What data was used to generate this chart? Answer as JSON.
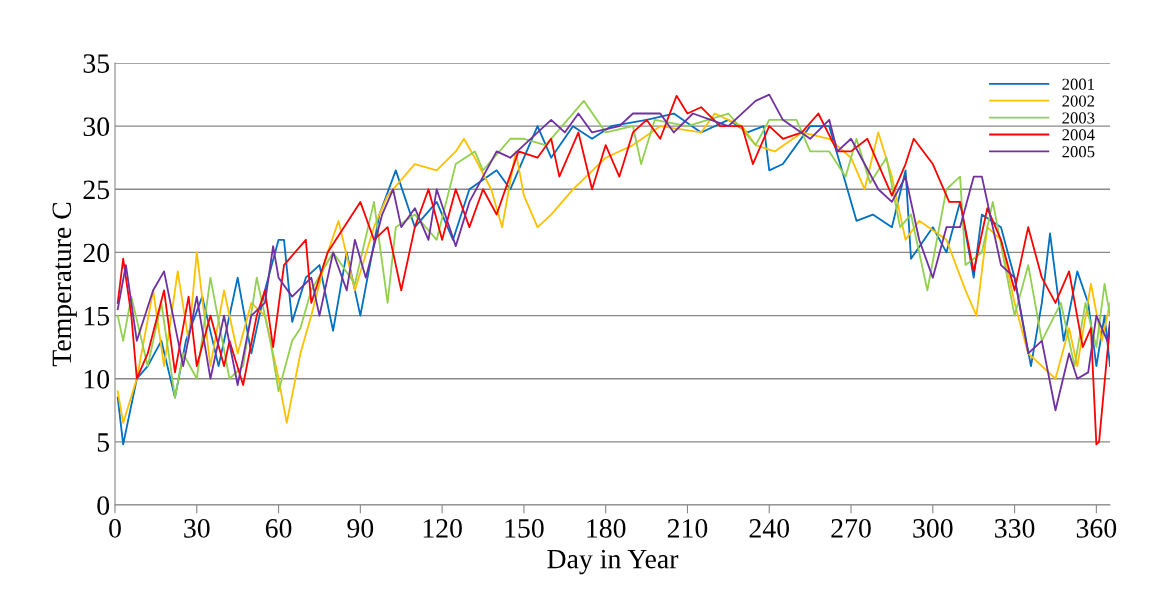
{
  "chart_data": {
    "type": "line",
    "xlabel": "Day in Year",
    "ylabel": "Temperature C",
    "xlim": [
      0,
      365
    ],
    "xticks": [
      0,
      30,
      60,
      90,
      120,
      150,
      180,
      210,
      240,
      270,
      300,
      330,
      360
    ],
    "ylim": [
      0,
      35
    ],
    "yticks": [
      0,
      5,
      10,
      15,
      20,
      25,
      30,
      35
    ],
    "grid": "y",
    "legend": "top right",
    "marker": "none",
    "line_style": "solid",
    "series": [
      {
        "name": "2001",
        "color": "#0070c0",
        "x": [
          1,
          3,
          8,
          12,
          17,
          22,
          26,
          32,
          38,
          45,
          50,
          55,
          60,
          62,
          65,
          70,
          75,
          80,
          85,
          90,
          97,
          103,
          110,
          118,
          124,
          130,
          140,
          145,
          155,
          160,
          168,
          175,
          182,
          195,
          205,
          215,
          225,
          232,
          238,
          240,
          245,
          255,
          262,
          272,
          278,
          285,
          290,
          292,
          300,
          305,
          310,
          315,
          318,
          325,
          330,
          336,
          340,
          343,
          348,
          353,
          357,
          360,
          363,
          365
        ],
        "values": [
          8.5,
          4.8,
          10,
          11,
          13,
          8.5,
          13,
          16.5,
          11,
          18,
          12,
          17,
          21,
          21,
          14.5,
          18,
          19,
          13.8,
          20,
          15,
          23,
          26.5,
          22,
          24,
          21,
          25,
          26.5,
          25,
          30,
          27.5,
          30,
          29,
          30,
          30.5,
          31,
          29.5,
          30.5,
          29.5,
          30,
          26.5,
          27,
          30,
          30,
          22.5,
          23,
          22,
          26.5,
          19.5,
          22,
          20,
          24,
          18,
          23,
          22,
          18,
          11,
          16,
          21.5,
          13,
          18.5,
          16,
          11,
          15,
          11
        ]
      },
      {
        "name": "2002",
        "color": "#ffc000",
        "x": [
          1,
          3,
          8,
          14,
          18,
          23,
          27,
          30,
          35,
          40,
          45,
          50,
          55,
          60,
          63,
          68,
          72,
          78,
          82,
          88,
          95,
          100,
          110,
          118,
          125,
          128,
          132,
          138,
          142,
          147,
          150,
          155,
          160,
          168,
          180,
          190,
          200,
          215,
          220,
          230,
          235,
          242,
          252,
          262,
          270,
          275,
          280,
          285,
          290,
          295,
          305,
          312,
          316,
          320,
          325,
          330,
          335,
          345,
          350,
          353,
          358,
          362,
          365
        ],
        "values": [
          9,
          6.5,
          10,
          17,
          11,
          18.5,
          13,
          20,
          11,
          17,
          12,
          16,
          15,
          10,
          6.5,
          12,
          15,
          20,
          22.5,
          17,
          22,
          24.5,
          27,
          26.5,
          28,
          29,
          27.5,
          25,
          22,
          28,
          24.5,
          22,
          23,
          25,
          27.5,
          28.5,
          30,
          29.5,
          31,
          30,
          28.5,
          28,
          29.5,
          29,
          27.5,
          25,
          29.5,
          26,
          21,
          22.5,
          21,
          17,
          15,
          22,
          21,
          16,
          12,
          10,
          14,
          11,
          17.5,
          13,
          16
        ]
      },
      {
        "name": "2003",
        "color": "#92d050",
        "x": [
          1,
          3,
          6,
          12,
          17,
          22,
          25,
          30,
          35,
          42,
          47,
          52,
          57,
          60,
          65,
          68,
          72,
          80,
          88,
          95,
          100,
          103,
          110,
          118,
          125,
          132,
          135,
          145,
          150,
          158,
          170,
          172,
          180,
          190,
          193,
          198,
          210,
          225,
          235,
          240,
          250,
          255,
          262,
          268,
          272,
          277,
          283,
          288,
          292,
          298,
          305,
          310,
          312,
          318,
          322,
          330,
          335,
          340,
          347,
          352,
          356,
          360,
          363,
          365
        ],
        "values": [
          15,
          13,
          16.5,
          11,
          16,
          8.5,
          12,
          10,
          18,
          10,
          11,
          18,
          13,
          9,
          13,
          14,
          17,
          20,
          17.5,
          24,
          16,
          22,
          23,
          21,
          27,
          28,
          26.5,
          29,
          29,
          28.5,
          31.5,
          32,
          29.5,
          30,
          27,
          30.5,
          30,
          31,
          28.5,
          30.5,
          30.5,
          28,
          28,
          26,
          29,
          25.5,
          27.5,
          22,
          23,
          17,
          25,
          26,
          19,
          20,
          24,
          15,
          19,
          13,
          16,
          11,
          16,
          12.5,
          17.5,
          15
        ]
      },
      {
        "name": "2004",
        "color": "#ff0000",
        "x": [
          1,
          3,
          6,
          8,
          12,
          18,
          22,
          27,
          30,
          35,
          40,
          42,
          47,
          52,
          55,
          58,
          62,
          70,
          72,
          78,
          90,
          95,
          100,
          105,
          110,
          115,
          120,
          125,
          130,
          135,
          140,
          148,
          155,
          160,
          163,
          170,
          175,
          180,
          185,
          190,
          195,
          200,
          206,
          210,
          215,
          222,
          230,
          234,
          240,
          245,
          252,
          258,
          265,
          270,
          276,
          285,
          290,
          293,
          300,
          306,
          310,
          315,
          320,
          325,
          330,
          335,
          340,
          345,
          350,
          355,
          358,
          360,
          361,
          364,
          365
        ],
        "values": [
          16,
          19.5,
          15,
          10,
          12,
          17,
          10.5,
          16.5,
          11,
          15,
          11,
          13,
          9.5,
          15,
          17,
          12.5,
          19,
          21,
          16,
          20,
          24,
          21,
          22,
          17,
          22,
          25,
          21,
          25,
          22,
          25,
          23,
          28,
          27.5,
          29,
          26,
          29.5,
          25,
          28.5,
          26,
          29.5,
          30.5,
          29,
          32.4,
          31,
          31.5,
          30,
          30,
          27,
          30,
          29,
          29.5,
          31,
          28,
          28,
          29,
          24.5,
          27,
          29,
          27,
          24,
          24,
          18.5,
          23.5,
          21,
          17,
          22,
          18,
          16,
          18.5,
          12.5,
          14,
          4.8,
          5,
          12,
          14
        ]
      },
      {
        "name": "2005",
        "color": "#7030a0",
        "x": [
          1,
          4,
          8,
          14,
          18,
          25,
          30,
          35,
          40,
          45,
          50,
          55,
          58,
          60,
          65,
          72,
          75,
          80,
          85,
          88,
          92,
          98,
          102,
          105,
          110,
          115,
          118,
          125,
          130,
          135,
          140,
          145,
          150,
          160,
          165,
          170,
          175,
          185,
          190,
          200,
          205,
          212,
          225,
          235,
          240,
          245,
          255,
          262,
          265,
          270,
          280,
          285,
          290,
          295,
          300,
          305,
          310,
          315,
          318,
          325,
          330,
          335,
          340,
          345,
          350,
          353,
          357,
          360,
          364,
          365
        ],
        "values": [
          15.5,
          19,
          13,
          17,
          18.5,
          11,
          16.5,
          10,
          15,
          9.5,
          15,
          16,
          20.5,
          18,
          16.5,
          18,
          15,
          20,
          17,
          21,
          18,
          23,
          25,
          22,
          23.5,
          21,
          25,
          20.5,
          24,
          26,
          28,
          27.5,
          28.5,
          30.5,
          29.5,
          31,
          29.5,
          30,
          31,
          31,
          29.5,
          31,
          30,
          32,
          32.5,
          30.5,
          29,
          30.5,
          28,
          29,
          25,
          24,
          26,
          21,
          18,
          22,
          22,
          26,
          26,
          19,
          18,
          12,
          13,
          7.5,
          12,
          10,
          10.5,
          15,
          13,
          14.5
        ]
      }
    ]
  }
}
